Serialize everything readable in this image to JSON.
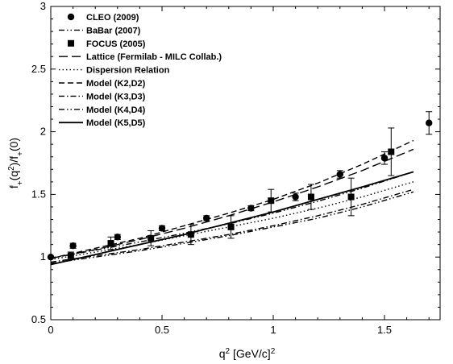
{
  "chart_data": {
    "type": "scatter",
    "xlabel": "q",
    "xlabel_sup": "2",
    "xlabel_unit": "[GeV/c]",
    "xlabel_unit_sup": "2",
    "ylabel_parts": [
      "f",
      "+",
      "(q",
      "2",
      ")/f",
      "+",
      "(0)"
    ],
    "xlim": [
      0,
      1.75
    ],
    "ylim": [
      0.5,
      3
    ],
    "xticks": [
      0,
      0.5,
      1,
      1.5
    ],
    "xtick_labels": [
      "0",
      "0.5",
      "1",
      "1.5"
    ],
    "yticks": [
      0.5,
      1,
      1.5,
      2,
      2.5,
      3
    ],
    "ytick_labels": [
      "0.5",
      "1",
      "1.5",
      "2",
      "2.5",
      "3"
    ],
    "legend_position": "top-left",
    "legend": [
      {
        "label": "CLEO     (2009)",
        "style": "circle"
      },
      {
        "label": "BaBar    (2007)",
        "style": "dash-dot-dot"
      },
      {
        "label": "FOCUS   (2005)",
        "style": "square"
      },
      {
        "label": "Lattice  (Fermilab - MILC Collab.)",
        "style": "long-dash"
      },
      {
        "label": "Dispersion Relation",
        "style": "dotted"
      },
      {
        "label": "Model   (K2,D2)",
        "style": "dashed"
      },
      {
        "label": "Model   (K3,D3)",
        "style": "dash-dot"
      },
      {
        "label": "Model   (K4,D4)",
        "style": "dash-dot-dot"
      },
      {
        "label": "Model   (K5,D5)",
        "style": "solid"
      }
    ],
    "points": [
      {
        "name": "CLEO (2009)",
        "marker": "circle",
        "x": [
          0.0,
          0.1,
          0.3,
          0.5,
          0.7,
          0.9,
          1.1,
          1.3,
          1.5,
          1.7
        ],
        "y": [
          1.0,
          1.09,
          1.16,
          1.23,
          1.31,
          1.39,
          1.48,
          1.66,
          1.79,
          2.07
        ],
        "err": [
          0.01,
          0.02,
          0.02,
          0.02,
          0.02,
          0.02,
          0.03,
          0.03,
          0.05,
          0.09
        ]
      },
      {
        "name": "FOCUS (2005)",
        "marker": "square",
        "x": [
          0.09,
          0.27,
          0.45,
          0.63,
          0.81,
          0.99,
          1.17,
          1.35,
          1.53
        ],
        "y": [
          1.01,
          1.11,
          1.15,
          1.18,
          1.24,
          1.45,
          1.48,
          1.48,
          1.84
        ],
        "err": [
          0.03,
          0.05,
          0.06,
          0.08,
          0.09,
          0.09,
          0.1,
          0.15,
          0.19
        ]
      }
    ],
    "series": [
      {
        "name": "BaBar (2007)",
        "style": "dash-dot-dot",
        "x": [
          0,
          0.2,
          0.4,
          0.6,
          0.8,
          1.0,
          1.2,
          1.4,
          1.63
        ],
        "y": [
          0.99,
          1.055,
          1.12,
          1.19,
          1.265,
          1.35,
          1.445,
          1.55,
          1.68
        ]
      },
      {
        "name": "Lattice (Fermilab - MILC Collab.)",
        "style": "long-dash",
        "x": [
          0,
          0.2,
          0.4,
          0.6,
          0.8,
          1.0,
          1.2,
          1.4,
          1.63
        ],
        "y": [
          0.99,
          1.06,
          1.14,
          1.23,
          1.33,
          1.44,
          1.56,
          1.69,
          1.86
        ]
      },
      {
        "name": "Dispersion Relation",
        "style": "dotted",
        "x": [
          0,
          0.2,
          0.4,
          0.6,
          0.8,
          1.0,
          1.2,
          1.4,
          1.63
        ],
        "y": [
          0.98,
          1.04,
          1.1,
          1.17,
          1.24,
          1.31,
          1.39,
          1.48,
          1.6
        ]
      },
      {
        "name": "Model (K2,D2)",
        "style": "dashed",
        "x": [
          0,
          0.2,
          0.4,
          0.6,
          0.8,
          1.0,
          1.2,
          1.4,
          1.63
        ],
        "y": [
          0.99,
          1.07,
          1.15,
          1.25,
          1.35,
          1.46,
          1.59,
          1.74,
          1.93
        ]
      },
      {
        "name": "Model (K3,D3)",
        "style": "dash-dot",
        "x": [
          0,
          0.2,
          0.4,
          0.6,
          0.8,
          1.0,
          1.2,
          1.4,
          1.63
        ],
        "y": [
          0.96,
          1.01,
          1.06,
          1.12,
          1.18,
          1.25,
          1.33,
          1.42,
          1.54
        ]
      },
      {
        "name": "Model (K4,D4)",
        "style": "dash-dot-dot",
        "x": [
          0,
          0.2,
          0.4,
          0.6,
          0.8,
          1.0,
          1.2,
          1.4,
          1.63
        ],
        "y": [
          0.95,
          1.0,
          1.05,
          1.11,
          1.17,
          1.24,
          1.31,
          1.4,
          1.52
        ]
      },
      {
        "name": "Model (K5,D5)",
        "style": "solid",
        "x": [
          0,
          0.2,
          0.4,
          0.6,
          0.8,
          1.0,
          1.2,
          1.4,
          1.63
        ],
        "y": [
          0.94,
          1.02,
          1.1,
          1.18,
          1.27,
          1.36,
          1.46,
          1.56,
          1.68
        ]
      }
    ]
  }
}
